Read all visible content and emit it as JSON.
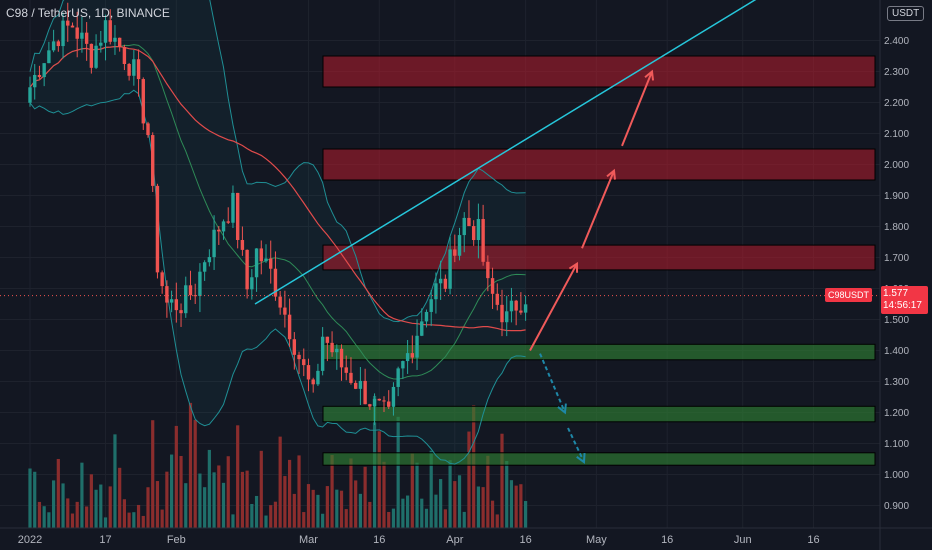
{
  "header": {
    "title": "C98 / TetherUS, 1D, BINANCE",
    "currency": "USDT"
  },
  "price_tag": {
    "symbol": "C98USDT",
    "price": "1.577",
    "countdown": "14:56:17"
  },
  "colors": {
    "background": "#131722",
    "up": "#26a69a",
    "down": "#ef5350",
    "resistance_zone": "#b71c2c",
    "support_zone": "#2e7d32",
    "trendline": "#26c6da",
    "arrow_up": "#f05a5a",
    "arrow_down": "#1e88a8",
    "ma_red": "#e04b4b",
    "ma_green": "#2e8b57",
    "band": "#1f8f95"
  },
  "chart_data": {
    "type": "candlestick",
    "ylim": [
      0.85,
      2.5
    ],
    "y_ticks": [
      "2.400",
      "2.300",
      "2.200",
      "2.100",
      "2.000",
      "1.900",
      "1.800",
      "1.700",
      "1.600",
      "1.500",
      "1.400",
      "1.300",
      "1.200",
      "1.100",
      "1.000",
      "0.900"
    ],
    "x_ticks": [
      "2022",
      "17",
      "Feb",
      "Mar",
      "16",
      "Apr",
      "16",
      "May",
      "16",
      "Jun",
      "16"
    ],
    "current_price": 1.577,
    "resistance_zones": [
      [
        2.25,
        2.35
      ],
      [
        1.95,
        2.05
      ],
      [
        1.66,
        1.74
      ]
    ],
    "support_zones": [
      [
        1.37,
        1.42
      ],
      [
        1.17,
        1.22
      ],
      [
        1.03,
        1.07
      ]
    ],
    "trendline": [
      [
        1.55,
        "Feb 4"
      ],
      [
        2.58,
        "May 31"
      ]
    ],
    "projection_up": [
      1.4,
      1.68,
      1.98,
      2.3
    ],
    "projection_down": [
      1.39,
      1.2,
      1.04
    ]
  }
}
